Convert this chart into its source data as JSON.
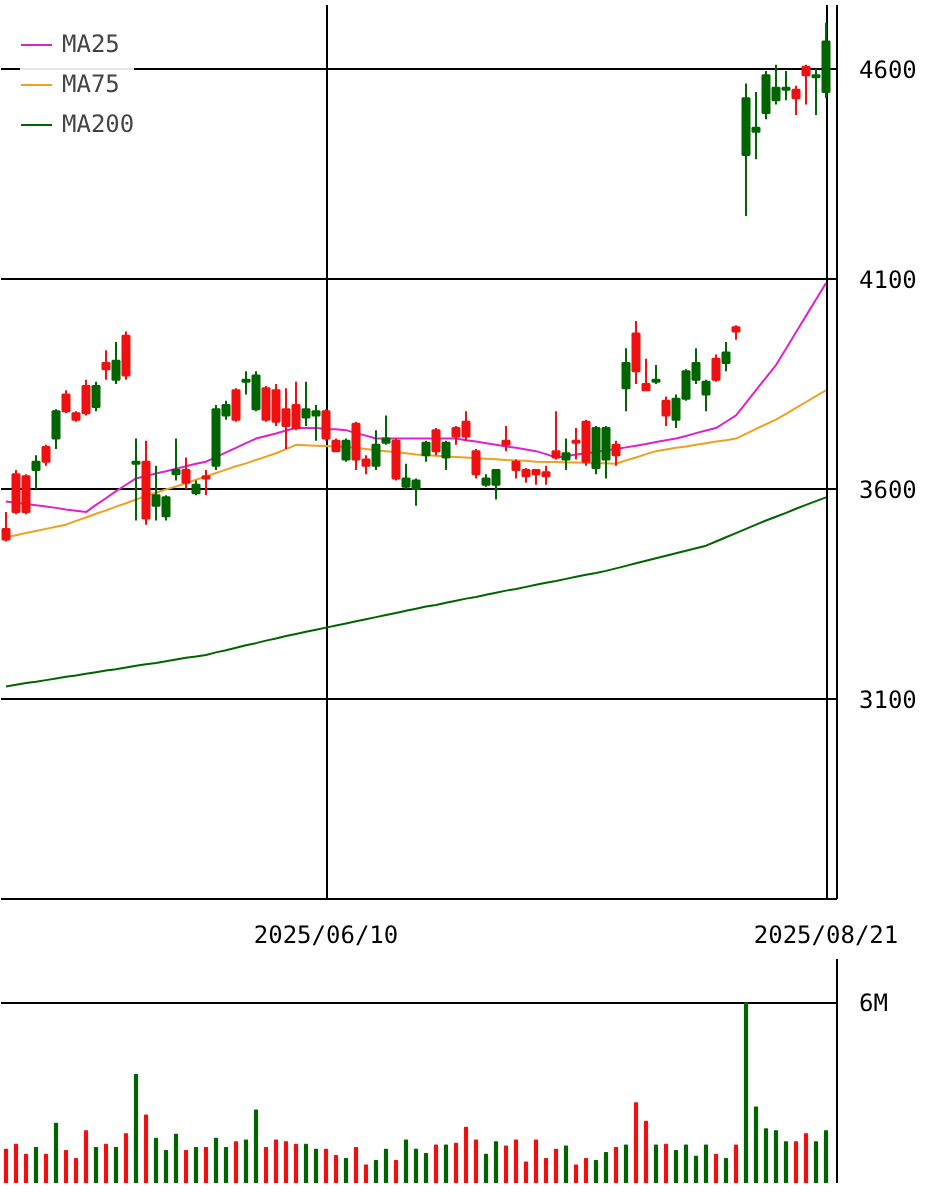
{
  "chart_data": [
    {
      "type": "candlestick",
      "categories": [
        null,
        null,
        null,
        null,
        null,
        null,
        null,
        null,
        null,
        null,
        null,
        null,
        null,
        null,
        null,
        null,
        null,
        null,
        null,
        null,
        null,
        null,
        null,
        null,
        null,
        null,
        null,
        null,
        null,
        null,
        null,
        null,
        "2025/06/10",
        null,
        null,
        null,
        null,
        null,
        null,
        null,
        null,
        null,
        null,
        null,
        null,
        null,
        null,
        null,
        null,
        null,
        null,
        null,
        null,
        null,
        null,
        null,
        null,
        null,
        null,
        null,
        null,
        null,
        null,
        null,
        null,
        null,
        null,
        null,
        null,
        null,
        null,
        null,
        null,
        null,
        null,
        null,
        null,
        null,
        null,
        null,
        null,
        null,
        "2025/08/21"
      ],
      "ohlc": [
        [
          3480,
          3545,
          3475,
          3505
        ],
        [
          3545,
          3645,
          3540,
          3635
        ],
        [
          3545,
          3635,
          3540,
          3630
        ],
        [
          3665,
          3680,
          3600,
          3645
        ],
        [
          3665,
          3705,
          3655,
          3700
        ],
        [
          3785,
          3790,
          3695,
          3720
        ],
        [
          3785,
          3835,
          3780,
          3825
        ],
        [
          3765,
          3785,
          3760,
          3780
        ],
        [
          3780,
          3860,
          3775,
          3845
        ],
        [
          3845,
          3855,
          3785,
          3795
        ],
        [
          3885,
          3930,
          3860,
          3900
        ],
        [
          3905,
          3950,
          3850,
          3860
        ],
        [
          3870,
          3975,
          3860,
          3965
        ],
        [
          3665,
          3720,
          3525,
          3660
        ],
        [
          3530,
          3715,
          3515,
          3665
        ],
        [
          3585,
          3655,
          3525,
          3560
        ],
        [
          3580,
          3585,
          3525,
          3535
        ],
        [
          3645,
          3720,
          3620,
          3635
        ],
        [
          3615,
          3675,
          3600,
          3645
        ],
        [
          3610,
          3620,
          3585,
          3590
        ],
        [
          3625,
          3645,
          3585,
          3630
        ],
        [
          3790,
          3800,
          3645,
          3655
        ],
        [
          3800,
          3810,
          3765,
          3775
        ],
        [
          3765,
          3840,
          3760,
          3835
        ],
        [
          3860,
          3880,
          3825,
          3855
        ],
        [
          3870,
          3880,
          3785,
          3790
        ],
        [
          3765,
          3845,
          3760,
          3840
        ],
        [
          3760,
          3850,
          3750,
          3835
        ],
        [
          3750,
          3840,
          3695,
          3790
        ],
        [
          3745,
          3855,
          3740,
          3800
        ],
        [
          3790,
          3855,
          3750,
          3770
        ],
        [
          3785,
          3800,
          3715,
          3775
        ],
        [
          3720,
          3790,
          3715,
          3785
        ],
        [
          3690,
          3720,
          3690,
          3715
        ],
        [
          3715,
          3720,
          3665,
          3670
        ],
        [
          3670,
          3760,
          3645,
          3755
        ],
        [
          3655,
          3680,
          3635,
          3670
        ],
        [
          3705,
          3740,
          3645,
          3655
        ],
        [
          3720,
          3775,
          3705,
          3710
        ],
        [
          3625,
          3720,
          3620,
          3715
        ],
        [
          3625,
          3660,
          3600,
          3605
        ],
        [
          3620,
          3625,
          3560,
          3600
        ],
        [
          3710,
          3715,
          3665,
          3680
        ],
        [
          3690,
          3745,
          3680,
          3740
        ],
        [
          3710,
          3715,
          3645,
          3675
        ],
        [
          3725,
          3750,
          3705,
          3745
        ],
        [
          3725,
          3785,
          3715,
          3760
        ],
        [
          3635,
          3695,
          3625,
          3690
        ],
        [
          3625,
          3635,
          3605,
          3610
        ],
        [
          3645,
          3645,
          3575,
          3610
        ],
        [
          3705,
          3750,
          3690,
          3715
        ],
        [
          3645,
          3670,
          3625,
          3665
        ],
        [
          3630,
          3650,
          3615,
          3645
        ],
        [
          3635,
          3645,
          3610,
          3645
        ],
        [
          3630,
          3655,
          3610,
          3640
        ],
        [
          3675,
          3785,
          3670,
          3690
        ],
        [
          3685,
          3720,
          3645,
          3670
        ],
        [
          3710,
          3745,
          3670,
          3715
        ],
        [
          3665,
          3765,
          3655,
          3760
        ],
        [
          3745,
          3750,
          3635,
          3650
        ],
        [
          3745,
          3750,
          3625,
          3670
        ],
        [
          3680,
          3715,
          3655,
          3705
        ],
        [
          3900,
          3935,
          3785,
          3840
        ],
        [
          3880,
          4000,
          3850,
          3970
        ],
        [
          3835,
          3910,
          3835,
          3850
        ],
        [
          3860,
          3895,
          3850,
          3855
        ],
        [
          3775,
          3820,
          3750,
          3810
        ],
        [
          3815,
          3825,
          3745,
          3765
        ],
        [
          3880,
          3885,
          3810,
          3815
        ],
        [
          3900,
          3935,
          3850,
          3860
        ],
        [
          3855,
          3860,
          3785,
          3825
        ],
        [
          3860,
          3920,
          3855,
          3910
        ],
        [
          3925,
          3950,
          3880,
          3900
        ],
        [
          3975,
          3990,
          3955,
          3985
        ],
        [
          4530,
          4565,
          4250,
          4395
        ],
        [
          4460,
          4545,
          4385,
          4450
        ],
        [
          4585,
          4595,
          4480,
          4495
        ],
        [
          4555,
          4610,
          4515,
          4525
        ],
        [
          4555,
          4595,
          4525,
          4550
        ],
        [
          4530,
          4560,
          4490,
          4550
        ],
        [
          4585,
          4610,
          4515,
          4605
        ],
        [
          4585,
          4600,
          4490,
          4580
        ],
        [
          4665,
          4710,
          4530,
          4545
        ]
      ],
      "colors": [
        "#ee1111",
        "#ee1111",
        "#ee1111",
        "#006400",
        "#ee1111",
        "#006400",
        "#ee1111",
        "#ee1111",
        "#ee1111",
        "#006400",
        "#ee1111",
        "#006400",
        "#ee1111",
        "#006400",
        "#ee1111",
        "#006400",
        "#006400",
        "#006400",
        "#ee1111",
        "#006400",
        "#ee1111",
        "#006400",
        "#006400",
        "#ee1111",
        "#006400",
        "#006400",
        "#ee1111",
        "#ee1111",
        "#ee1111",
        "#ee1111",
        "#006400",
        "#006400",
        "#ee1111",
        "#ee1111",
        "#006400",
        "#ee1111",
        "#ee1111",
        "#006400",
        "#006400",
        "#ee1111",
        "#006400",
        "#006400",
        "#006400",
        "#ee1111",
        "#006400",
        "#ee1111",
        "#ee1111",
        "#ee1111",
        "#006400",
        "#006400",
        "#ee1111",
        "#ee1111",
        "#ee1111",
        "#ee1111",
        "#ee1111",
        "#ee1111",
        "#006400",
        "#ee1111",
        "#ee1111",
        "#006400",
        "#006400",
        "#ee1111",
        "#006400",
        "#ee1111",
        "#ee1111",
        "#006400",
        "#ee1111",
        "#006400",
        "#006400",
        "#006400",
        "#006400",
        "#ee1111",
        "#006400",
        "#ee1111",
        "#006400",
        "#006400",
        "#006400",
        "#006400",
        "#006400",
        "#ee1111",
        "#ee1111",
        "#006400",
        "#006400"
      ],
      "series": [
        {
          "type": "line",
          "name": "MA25",
          "color": "#dd22cc",
          "values": [
            3570,
            3567,
            3564,
            3561,
            3558,
            3555,
            3551,
            3548,
            3545,
            3562,
            3578,
            3595,
            3610,
            3625,
            3631,
            3637,
            3642,
            3648,
            3654,
            3660,
            3665,
            3676,
            3687,
            3698,
            3709,
            3720,
            3726,
            3732,
            3739,
            3745,
            3745,
            3745,
            3743,
            3742,
            3740,
            3733,
            3727,
            3720,
            3720,
            3720,
            3720,
            3720,
            3720,
            3720,
            3720,
            3720,
            3716,
            3713,
            3709,
            3705,
            3701,
            3698,
            3694,
            3690,
            3683,
            3675,
            3678,
            3682,
            3685,
            3688,
            3692,
            3695,
            3699,
            3703,
            3707,
            3712,
            3716,
            3720,
            3726,
            3733,
            3739,
            3745,
            3760,
            3775,
            3805,
            3835,
            3865,
            3895,
            3934,
            3973,
            4012,
            4051,
            4090
          ]
        },
        {
          "type": "line",
          "name": "MA75",
          "color": "#f0a020",
          "values": [
            3485,
            3490,
            3495,
            3500,
            3505,
            3510,
            3515,
            3524,
            3532,
            3541,
            3549,
            3558,
            3566,
            3575,
            3583,
            3591,
            3599,
            3606,
            3614,
            3622,
            3630,
            3638,
            3646,
            3654,
            3661,
            3669,
            3677,
            3685,
            3695,
            3705,
            3704,
            3703,
            3702,
            3701,
            3700,
            3698,
            3695,
            3692,
            3690,
            3688,
            3685,
            3682,
            3680,
            3679,
            3677,
            3676,
            3675,
            3673,
            3672,
            3671,
            3669,
            3668,
            3667,
            3665,
            3664,
            3664,
            3663,
            3663,
            3662,
            3661,
            3661,
            3660,
            3668,
            3675,
            3683,
            3690,
            3694,
            3698,
            3701,
            3705,
            3709,
            3713,
            3716,
            3720,
            3731,
            3743,
            3754,
            3765,
            3779,
            3793,
            3807,
            3821,
            3835
          ]
        },
        {
          "type": "line",
          "name": "MA200",
          "color": "#006400",
          "values": [
            3130,
            3134,
            3138,
            3141,
            3145,
            3149,
            3153,
            3156,
            3160,
            3164,
            3168,
            3171,
            3175,
            3179,
            3183,
            3186,
            3190,
            3194,
            3198,
            3201,
            3205,
            3211,
            3216,
            3222,
            3228,
            3233,
            3239,
            3244,
            3250,
            3255,
            3260,
            3265,
            3270,
            3275,
            3280,
            3285,
            3290,
            3295,
            3300,
            3305,
            3310,
            3315,
            3320,
            3324,
            3329,
            3334,
            3339,
            3343,
            3348,
            3353,
            3358,
            3362,
            3367,
            3372,
            3377,
            3381,
            3386,
            3391,
            3396,
            3400,
            3405,
            3411,
            3417,
            3423,
            3429,
            3435,
            3441,
            3447,
            3453,
            3459,
            3465,
            3475,
            3485,
            3495,
            3505,
            3515,
            3525,
            3534,
            3543,
            3553,
            3562,
            3571,
            3580
          ]
        }
      ],
      "ylim": [
        2624,
        4752
      ],
      "yticks": [
        3100,
        3600,
        4100,
        4600
      ],
      "grid": true,
      "legend": "top left"
    },
    {
      "type": "bar",
      "categories": [
        null,
        null,
        null,
        null,
        null,
        null,
        null,
        null,
        null,
        null,
        null,
        null,
        null,
        null,
        null,
        null,
        null,
        null,
        null,
        null,
        null,
        null,
        null,
        null,
        null,
        null,
        null,
        null,
        null,
        null,
        null,
        null,
        "2025/06/10",
        null,
        null,
        null,
        null,
        null,
        null,
        null,
        null,
        null,
        null,
        null,
        null,
        null,
        null,
        null,
        null,
        null,
        null,
        null,
        null,
        null,
        null,
        null,
        null,
        null,
        null,
        null,
        null,
        null,
        null,
        null,
        null,
        null,
        null,
        null,
        null,
        null,
        null,
        null,
        null,
        null,
        null,
        null,
        null,
        null,
        null,
        null,
        null,
        null,
        "2025/08/21"
      ],
      "values": [
        1.12,
        1.29,
        0.95,
        1.18,
        0.95,
        1.99,
        1.08,
        0.81,
        1.74,
        1.18,
        1.29,
        1.18,
        1.64,
        3.61,
        2.26,
        1.49,
        1.08,
        1.62,
        1.08,
        1.18,
        1.18,
        1.49,
        1.18,
        1.37,
        1.43,
        2.43,
        1.18,
        1.43,
        1.37,
        1.29,
        1.29,
        1.12,
        1.12,
        0.91,
        0.81,
        1.18,
        0.6,
        0.75,
        1.12,
        0.75,
        1.43,
        1.12,
        0.98,
        1.26,
        1.26,
        1.32,
        1.85,
        1.43,
        0.95,
        1.37,
        1.23,
        1.43,
        0.7,
        1.43,
        0.81,
        1.12,
        1.23,
        0.6,
        0.81,
        0.75,
        1.01,
        1.18,
        1.26,
        2.67,
        2.05,
        1.26,
        1.29,
        1.08,
        1.26,
        0.89,
        1.26,
        0.95,
        0.81,
        1.26,
        6.0,
        2.53,
        1.8,
        1.74,
        1.37,
        1.37,
        1.64,
        1.37,
        1.74
      ],
      "colors": [
        "#ee1111",
        "#ee1111",
        "#ee1111",
        "#006400",
        "#ee1111",
        "#006400",
        "#ee1111",
        "#ee1111",
        "#ee1111",
        "#006400",
        "#ee1111",
        "#006400",
        "#ee1111",
        "#006400",
        "#ee1111",
        "#006400",
        "#006400",
        "#006400",
        "#ee1111",
        "#006400",
        "#ee1111",
        "#006400",
        "#006400",
        "#ee1111",
        "#006400",
        "#006400",
        "#ee1111",
        "#ee1111",
        "#ee1111",
        "#ee1111",
        "#006400",
        "#006400",
        "#ee1111",
        "#ee1111",
        "#006400",
        "#ee1111",
        "#ee1111",
        "#006400",
        "#006400",
        "#ee1111",
        "#006400",
        "#006400",
        "#006400",
        "#ee1111",
        "#006400",
        "#ee1111",
        "#ee1111",
        "#ee1111",
        "#006400",
        "#006400",
        "#ee1111",
        "#ee1111",
        "#ee1111",
        "#ee1111",
        "#ee1111",
        "#ee1111",
        "#006400",
        "#ee1111",
        "#ee1111",
        "#006400",
        "#006400",
        "#ee1111",
        "#006400",
        "#ee1111",
        "#ee1111",
        "#006400",
        "#ee1111",
        "#006400",
        "#006400",
        "#006400",
        "#006400",
        "#ee1111",
        "#006400",
        "#ee1111",
        "#006400",
        "#006400",
        "#006400",
        "#006400",
        "#006400",
        "#ee1111",
        "#ee1111",
        "#006400",
        "#006400"
      ],
      "ylim": [
        0,
        7.46
      ],
      "yticks": [
        {
          "value": 6,
          "label": "6M"
        }
      ],
      "grid": "y",
      "tick_labels": "y"
    }
  ]
}
